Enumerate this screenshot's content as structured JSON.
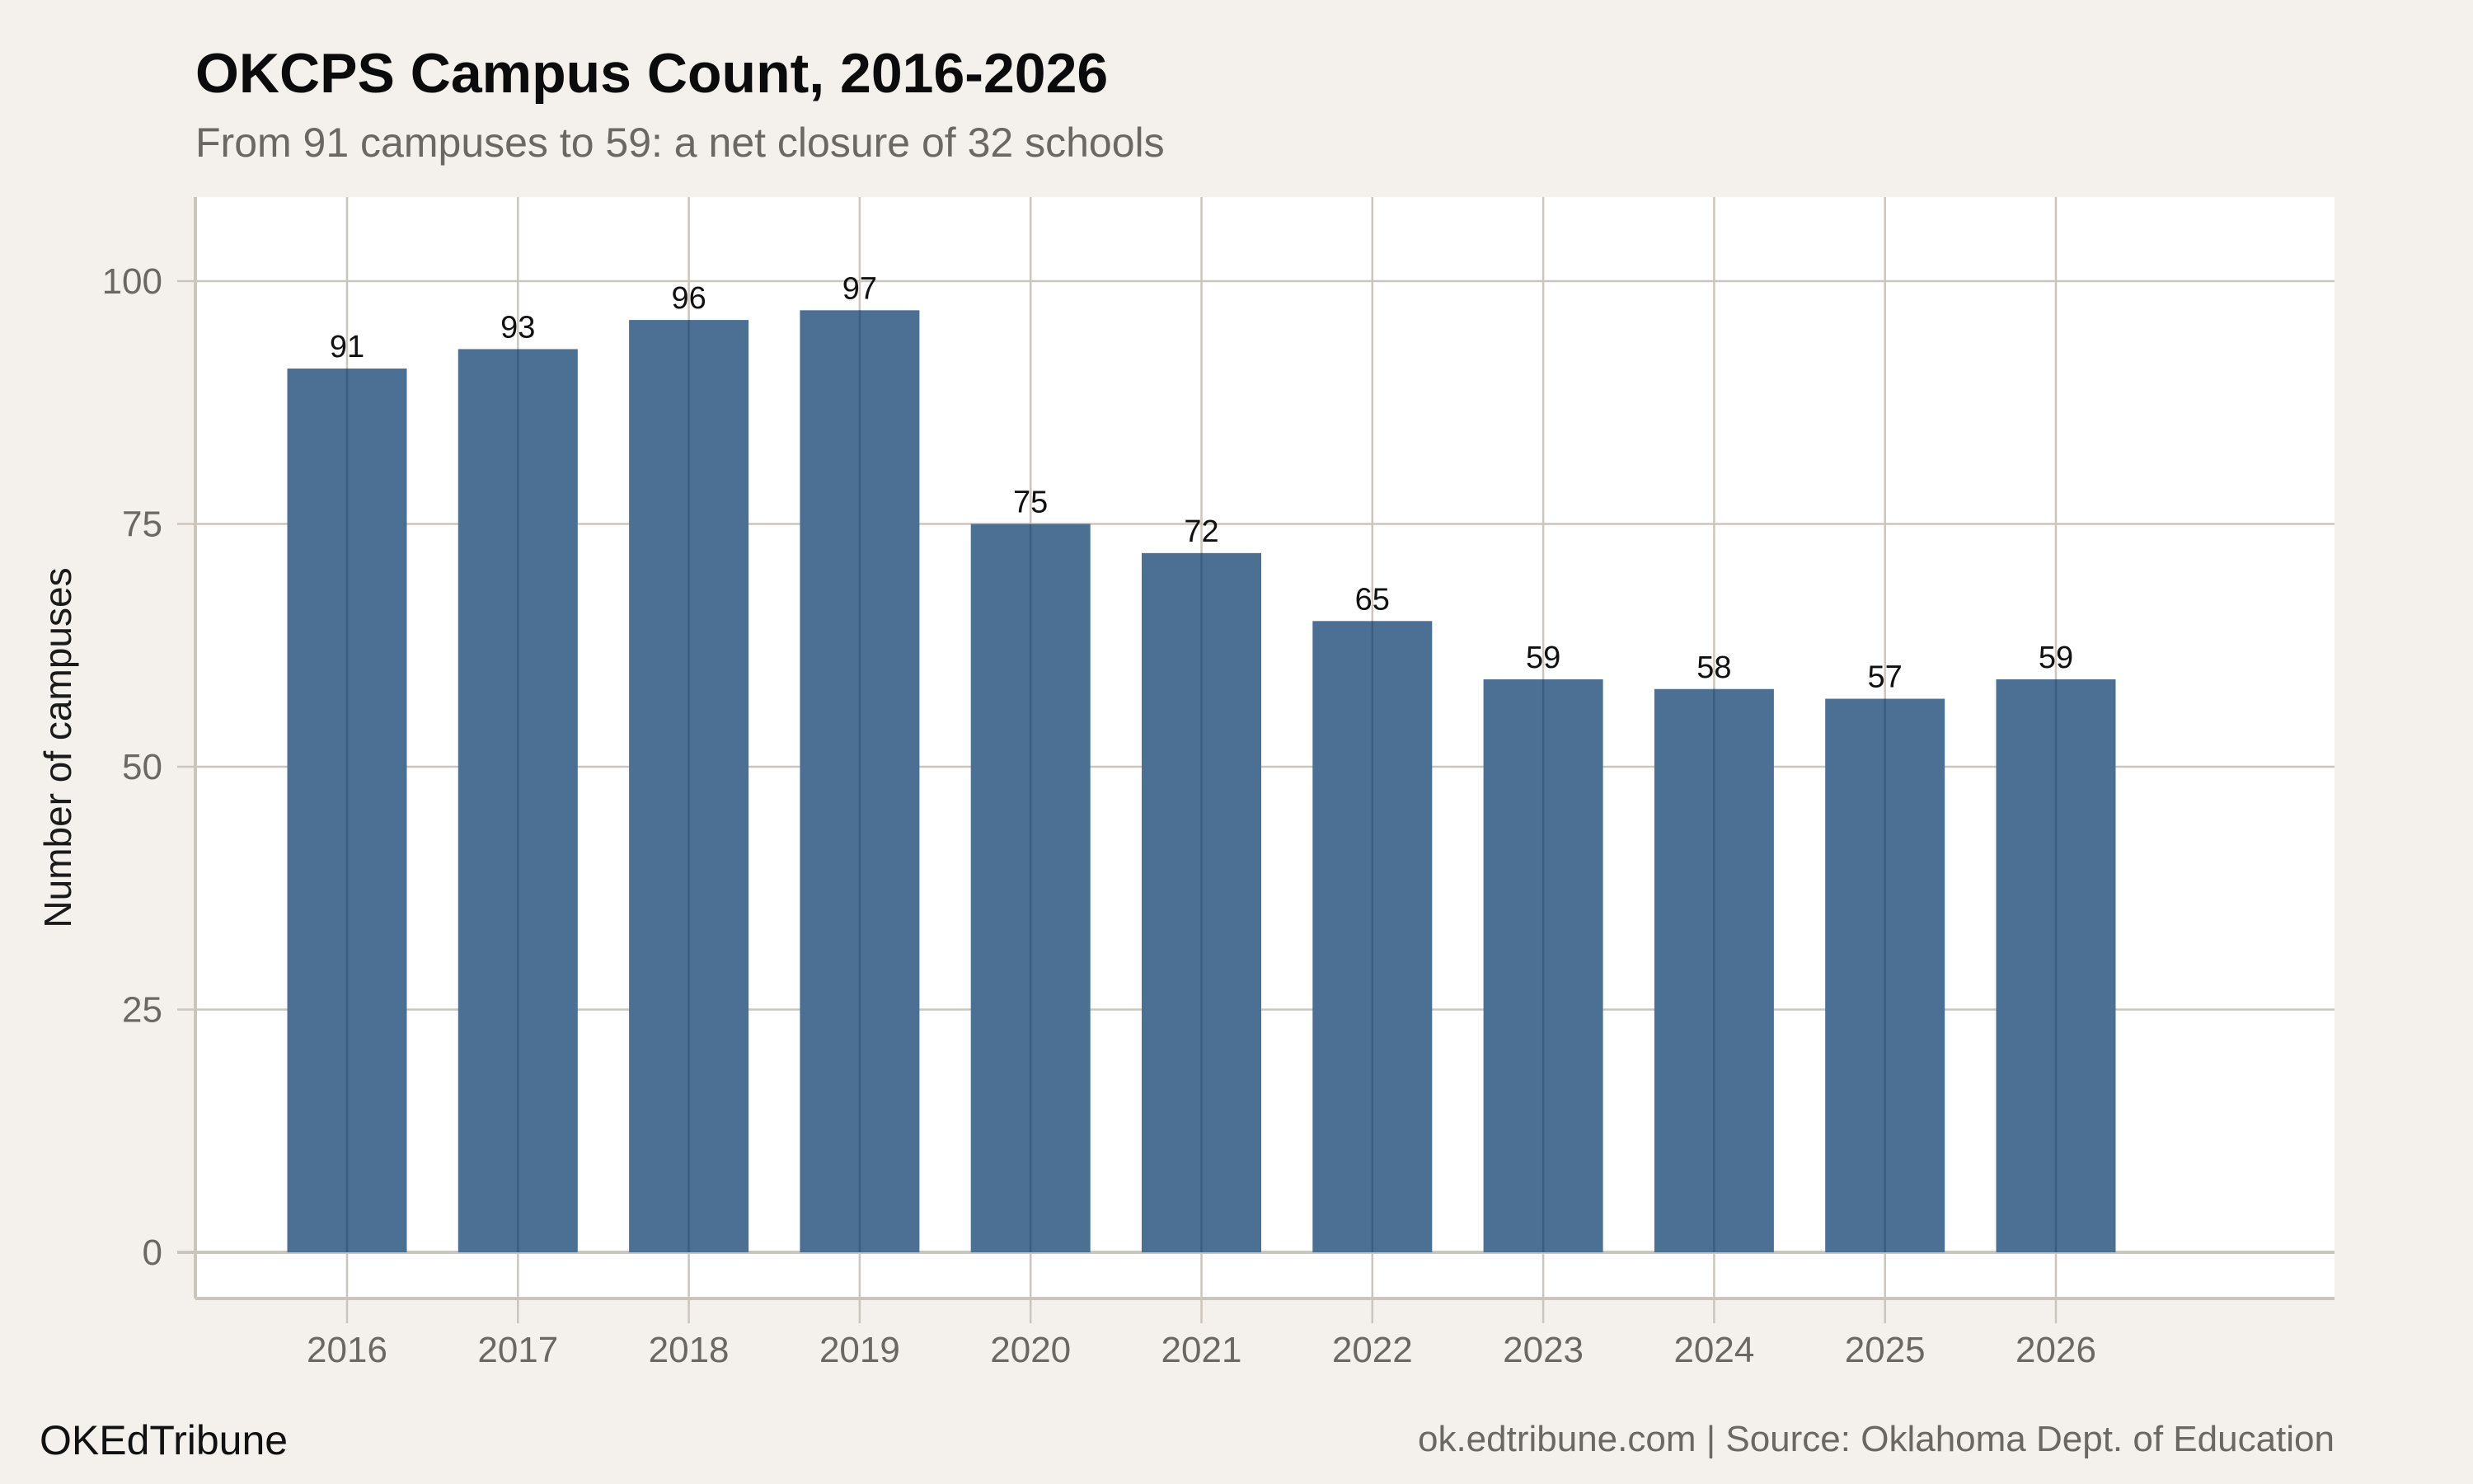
{
  "chart_data": {
    "type": "bar",
    "title": "OKCPS Campus Count, 2016-2026",
    "subtitle": "From 91 campuses to 59: a net closure of 32 schools",
    "xlabel": "",
    "ylabel": "Number of campuses",
    "categories": [
      "2016",
      "2017",
      "2018",
      "2019",
      "2020",
      "2021",
      "2022",
      "2023",
      "2024",
      "2025",
      "2026"
    ],
    "values": [
      91,
      93,
      96,
      97,
      75,
      72,
      65,
      59,
      58,
      57,
      59
    ],
    "ylim": [
      -4.8,
      108.5
    ],
    "yticks": [
      0,
      25,
      50,
      75,
      100
    ],
    "grid": true,
    "bar_color": "#4b7094",
    "background": "#f4f1ec",
    "panel_background": "#ffffff",
    "grid_color": "#cbc6bd"
  },
  "footer": {
    "brand": "OKEdTribune",
    "source": "ok.edtribune.com | Source: Oklahoma Dept. of Education"
  }
}
